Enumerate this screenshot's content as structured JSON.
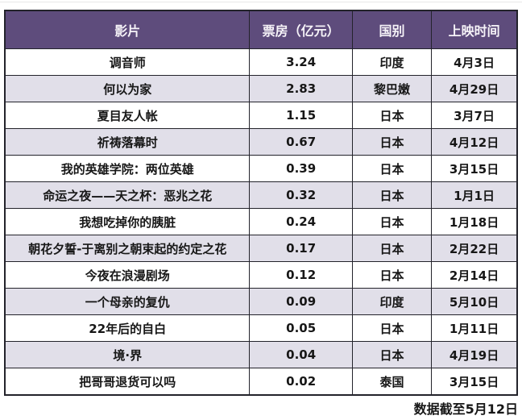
{
  "colors": {
    "header_bg": "#5e4c7c",
    "header_text": "#f6f3f8",
    "row_alt_bg": "#e1dfe9",
    "row_bg": "#ffffff",
    "border": "#23232b",
    "cell_text": "#171717"
  },
  "chart_data": {
    "type": "table",
    "columns": [
      "影片",
      "票房（亿元）",
      "国别",
      "上映时间"
    ],
    "rows": [
      [
        "调音师",
        3.24,
        "印度",
        "4月3日"
      ],
      [
        "何以为家",
        2.83,
        "黎巴嫩",
        "4月29日"
      ],
      [
        "夏目友人帐",
        1.15,
        "日本",
        "3月7日"
      ],
      [
        "祈祷落幕时",
        0.67,
        "日本",
        "4月12日"
      ],
      [
        "我的英雄学院：两位英雄",
        0.39,
        "日本",
        "3月15日"
      ],
      [
        "命运之夜——天之杯：恶兆之花",
        0.32,
        "日本",
        "1月1日"
      ],
      [
        "我想吃掉你的胰脏",
        0.24,
        "日本",
        "1月18日"
      ],
      [
        "朝花夕誓-于离别之朝束起的约定之花",
        0.17,
        "日本",
        "2月22日"
      ],
      [
        "今夜在浪漫剧场",
        0.12,
        "日本",
        "2月14日"
      ],
      [
        "一个母亲的复仇",
        0.09,
        "印度",
        "5月10日"
      ],
      [
        "22年后的自白",
        0.05,
        "日本",
        "1月11日"
      ],
      [
        "境·界",
        0.04,
        "日本",
        "4月19日"
      ],
      [
        "把哥哥退货可以吗",
        0.02,
        "泰国",
        "3月15日"
      ]
    ],
    "note": "数据截至5月12日"
  }
}
